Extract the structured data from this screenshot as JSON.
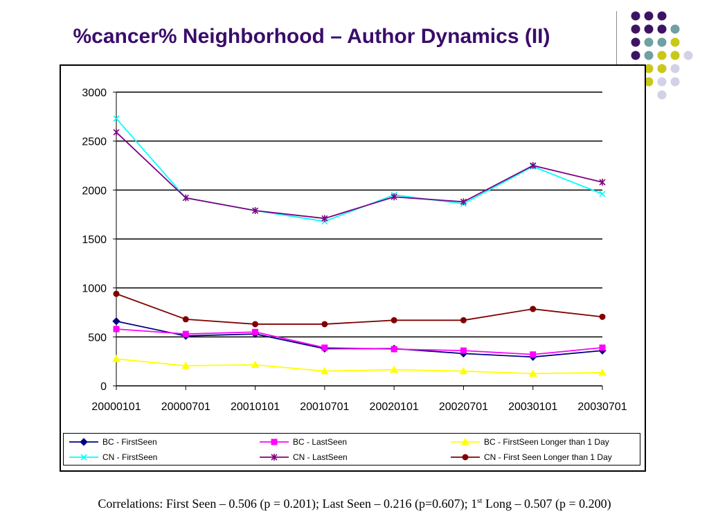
{
  "slide": {
    "title": "%cancer% Neighborhood – Author Dynamics (II)",
    "footnote_a": "Correlations: First Seen – 0.506 (p = 0.201); Last Seen – 0.216 (p=0.607); 1",
    "footnote_sup": "st",
    "footnote_b": " Long – 0.507 (p = 0.200)"
  },
  "decoration": {
    "dot_colors": {
      "purple": "#3d1464",
      "teal": "#6fa0a2",
      "olive": "#c8c81a",
      "lavender": "#d2d2e6"
    },
    "dot_grid": [
      [
        "purple",
        "purple",
        "purple",
        "",
        "",
        ""
      ],
      [
        "purple",
        "purple",
        "purple",
        "teal",
        "",
        ""
      ],
      [
        "purple",
        "teal",
        "teal",
        "olive",
        "",
        ""
      ],
      [
        "purple",
        "teal",
        "olive",
        "olive",
        "lavender",
        ""
      ],
      [
        "olive",
        "olive",
        "olive",
        "lavender",
        "",
        ""
      ],
      [
        "olive",
        "olive",
        "lavender",
        "lavender",
        "",
        ""
      ],
      [
        "lavender",
        "",
        "lavender",
        "",
        "",
        ""
      ]
    ]
  },
  "chart_data": {
    "type": "line",
    "categories": [
      "20000101",
      "20000701",
      "20010101",
      "20010701",
      "20020101",
      "20020701",
      "20030101",
      "20030701"
    ],
    "ylim": [
      0,
      3000
    ],
    "yticks": [
      "0",
      "500",
      "1000",
      "1500",
      "2000",
      "2500",
      "3000"
    ],
    "grid": "horizontal",
    "legend_position": "bottom",
    "series": [
      {
        "name": "BC - FirstSeen",
        "color": "#000080",
        "marker": "diamond",
        "values": [
          660,
          510,
          530,
          380,
          380,
          330,
          295,
          360
        ]
      },
      {
        "name": "BC - LastSeen",
        "color": "#ff00ff",
        "marker": "square",
        "values": [
          580,
          530,
          550,
          390,
          375,
          360,
          320,
          390
        ]
      },
      {
        "name": "BC - FirstSeen Longer than 1 Day",
        "color": "#ffff00",
        "marker": "triangle",
        "values": [
          275,
          205,
          215,
          150,
          165,
          150,
          125,
          135
        ]
      },
      {
        "name": "CN - FirstSeen",
        "color": "#00ffff",
        "marker": "x",
        "values": [
          2730,
          1920,
          1790,
          1680,
          1950,
          1860,
          2240,
          1960
        ]
      },
      {
        "name": "CN - LastSeen",
        "color": "#800080",
        "marker": "star",
        "values": [
          2590,
          1920,
          1790,
          1710,
          1930,
          1880,
          2250,
          2080
        ]
      },
      {
        "name": "CN - First Seen Longer than 1 Day",
        "color": "#800000",
        "marker": "circle",
        "values": [
          940,
          680,
          630,
          630,
          670,
          670,
          785,
          705
        ]
      }
    ]
  }
}
